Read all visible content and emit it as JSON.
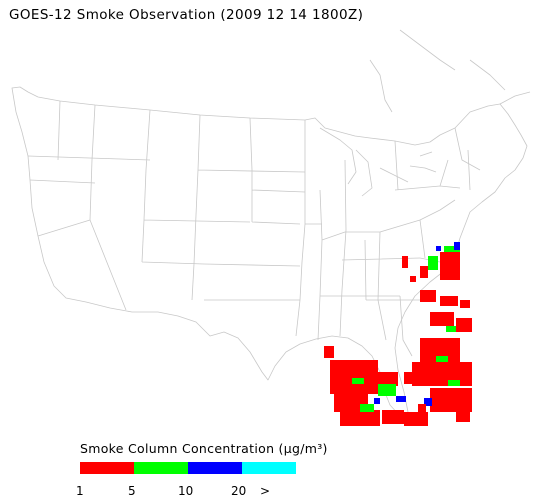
{
  "title": "GOES-12 Smoke Observation (2009 12 14  1800Z)",
  "colors": {
    "background": "#ffffff",
    "boundary": "#c8c8c8",
    "smoke_light": "#ff0000",
    "smoke_moderate": "#00ff00",
    "smoke_heavy": "#0000ff",
    "smoke_very_heavy": "#00ffff"
  },
  "legend": {
    "title": "Smoke Column Concentration (μg/m³)",
    "swatches": [
      {
        "color": "#ff0000"
      },
      {
        "color": "#00ff00"
      },
      {
        "color": "#0000ff"
      },
      {
        "color": "#00ffff"
      }
    ],
    "ticks": [
      "1",
      "5",
      "10",
      "20",
      ">"
    ]
  }
}
